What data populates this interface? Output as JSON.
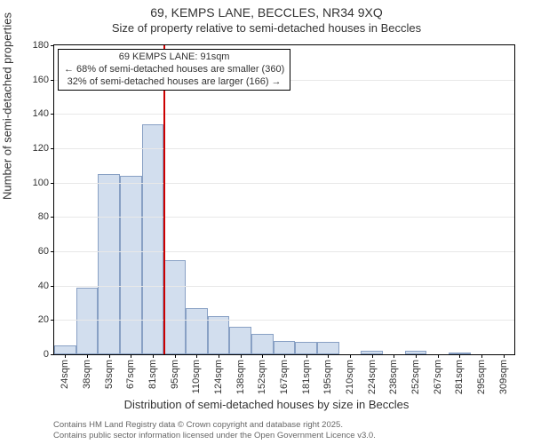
{
  "title": "69, KEMPS LANE, BECCLES, NR34 9XQ",
  "subtitle": "Size of property relative to semi-detached houses in Beccles",
  "chart": {
    "type": "histogram",
    "background_color": "#ffffff",
    "plot_border_color": "#000000",
    "grid_color": "#e8e8e8",
    "bar_fill": "#d2deee",
    "bar_border": "#88a0c4",
    "refline_color": "#cc0000",
    "refline_category_index": 5,
    "ylim": [
      0,
      180
    ],
    "ytick_step": 20,
    "ylabel": "Number of semi-detached properties",
    "xlabel": "Distribution of semi-detached houses by size in Beccles",
    "label_fontsize": 13,
    "tick_fontsize": 11,
    "categories": [
      "24sqm",
      "38sqm",
      "53sqm",
      "67sqm",
      "81sqm",
      "95sqm",
      "110sqm",
      "124sqm",
      "138sqm",
      "152sqm",
      "167sqm",
      "181sqm",
      "195sqm",
      "210sqm",
      "224sqm",
      "238sqm",
      "252sqm",
      "267sqm",
      "281sqm",
      "295sqm",
      "309sqm"
    ],
    "values": [
      5,
      39,
      105,
      104,
      134,
      55,
      27,
      22,
      16,
      12,
      8,
      7,
      7,
      0,
      2,
      0,
      2,
      0,
      1,
      0,
      0
    ],
    "bar_gap_ratio": 0.0
  },
  "annotation": {
    "line1": "69 KEMPS LANE: 91sqm",
    "line2": "← 68% of semi-detached houses are smaller (360)",
    "line3": "32% of semi-detached houses are larger (166) →",
    "border_color": "#000000",
    "background_color": "#ffffff",
    "fontsize": 11
  },
  "footer": {
    "line1": "Contains HM Land Registry data © Crown copyright and database right 2025.",
    "line2": "Contains public sector information licensed under the Open Government Licence v3.0.",
    "color": "#666666",
    "fontsize": 9.5
  }
}
